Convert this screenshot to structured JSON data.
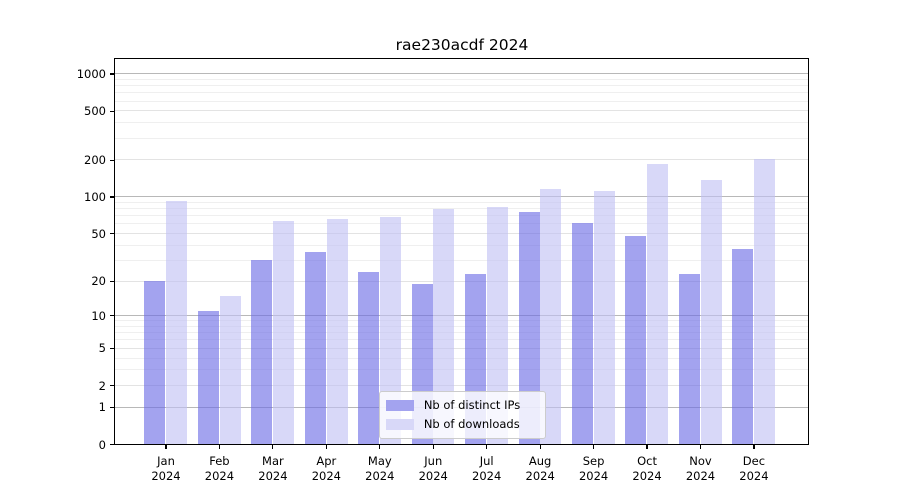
{
  "title": "rae230acdf 2024",
  "chart_data": {
    "type": "bar",
    "title": "rae230acdf 2024",
    "categories": [
      "Jan 2024",
      "Feb 2024",
      "Mar 2024",
      "Apr 2024",
      "May 2024",
      "Jun 2024",
      "Jul 2024",
      "Aug 2024",
      "Sep 2024",
      "Oct 2024",
      "Nov 2024",
      "Dec 2024"
    ],
    "series": [
      {
        "name": "Nb of distinct IPs",
        "swatch_color": "#a3a3ef",
        "bar_color": "rgba(107,107,229,0.62)",
        "values": [
          20,
          11,
          30,
          35,
          24,
          19,
          23,
          75,
          61,
          48,
          23,
          37
        ]
      },
      {
        "name": "Nb of downloads",
        "swatch_color": "#d8d8f8",
        "bar_color": "rgba(192,192,244,0.62)",
        "values": [
          93,
          15,
          63,
          66,
          68,
          79,
          82,
          116,
          112,
          185,
          136,
          205
        ]
      }
    ],
    "xlabel": "",
    "ylabel": "",
    "y_scale": "log10(1+v)",
    "ylim": [
      0,
      1320
    ],
    "y_ticks": [
      0,
      1,
      2,
      5,
      10,
      20,
      50,
      100,
      200,
      500,
      1000
    ],
    "y_minor_gridlines": [
      3,
      4,
      6,
      7,
      8,
      9,
      30,
      40,
      60,
      70,
      80,
      90,
      300,
      400,
      600,
      700,
      800,
      900
    ],
    "grid": true,
    "legend": {
      "position": "lower center",
      "items": [
        "Nb of distinct IPs",
        "Nb of downloads"
      ]
    }
  },
  "colors": {
    "background": "#ffffff",
    "axis": "#000000",
    "text": "#000000",
    "decade_gridline": "#b8b8b8",
    "labeled_gridline": "#e3e3e3",
    "minor_gridline": "#efefef"
  }
}
